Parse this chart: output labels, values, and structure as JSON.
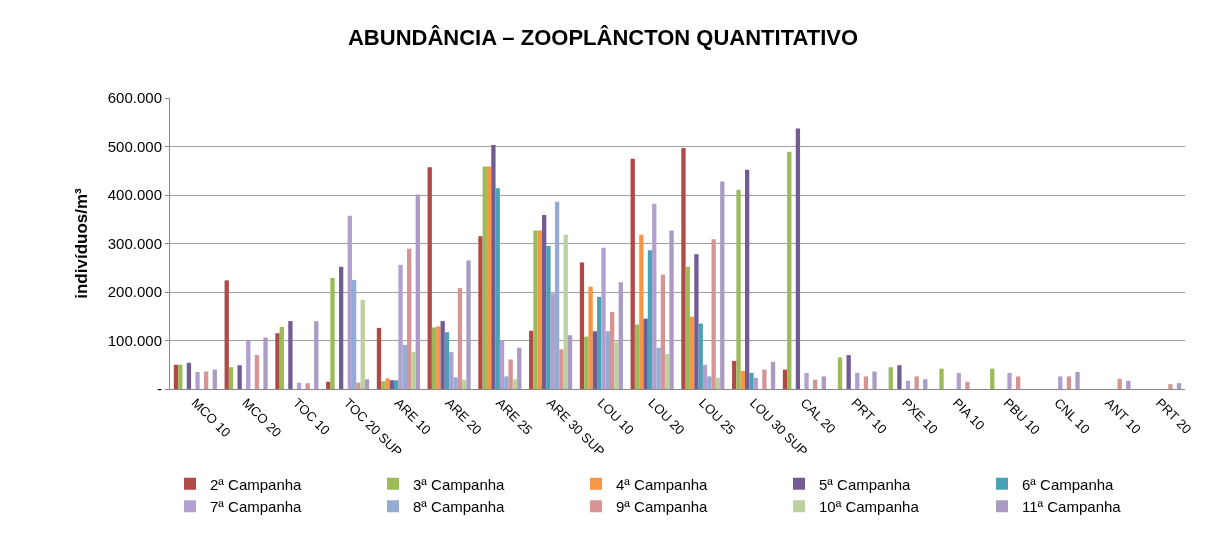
{
  "chart_data": {
    "type": "bar",
    "title": "ABUNDÂNCIA – ZOOPLÂNCTON QUANTITATIVO",
    "ylabel": "indivíduos/m³",
    "categories": [
      "MCO 10",
      "MCO 20",
      "TOC 10",
      "TOC 20 SUP",
      "ARE 10",
      "ARE 20",
      "ARE 25",
      "ARE 30 SUP",
      "LOU 10",
      "LOU 20",
      "LOU 25",
      "LOU 30 SUP",
      "CAL 20",
      "PRT 10",
      "PXE 10",
      "PIA 10",
      "PBU 10",
      "CNL 10",
      "ANT 10",
      "PRT 20"
    ],
    "series": [
      {
        "name": "2ª Campanha",
        "color": "#b04a47",
        "values": [
          50000,
          224000,
          115000,
          15000,
          126000,
          457000,
          315000,
          120000,
          261000,
          475000,
          497000,
          58000,
          40000,
          null,
          null,
          null,
          null,
          null,
          null,
          null
        ]
      },
      {
        "name": "3ª Campanha",
        "color": "#9bbb59",
        "values": [
          50000,
          45000,
          128000,
          229000,
          16000,
          127000,
          459000,
          327000,
          108000,
          133000,
          252000,
          411000,
          489000,
          65000,
          45000,
          42000,
          42000,
          null,
          null,
          null
        ]
      },
      {
        "name": "4ª Campanha",
        "color": "#f79646",
        "values": [
          null,
          null,
          null,
          null,
          22000,
          129000,
          459000,
          327000,
          211000,
          318000,
          149000,
          37000,
          null,
          null,
          null,
          null,
          null,
          null,
          null,
          null
        ]
      },
      {
        "name": "5ª Campanha",
        "color": "#725c96",
        "values": [
          54000,
          49000,
          140000,
          252000,
          18000,
          140000,
          503000,
          359000,
          119000,
          145000,
          278000,
          452000,
          537000,
          70000,
          49000,
          null,
          null,
          null,
          null,
          null
        ]
      },
      {
        "name": "6ª Campanha",
        "color": "#4aa0b5",
        "values": [
          null,
          null,
          null,
          null,
          18000,
          117000,
          414000,
          295000,
          190000,
          286000,
          135000,
          33000,
          null,
          null,
          null,
          null,
          null,
          null,
          null,
          null
        ]
      },
      {
        "name": "7ª Campanha",
        "color": "#b1a0cf",
        "values": [
          35000,
          100000,
          13000,
          357000,
          256000,
          76000,
          100000,
          197000,
          291000,
          382000,
          50000,
          23000,
          33000,
          33000,
          17000,
          33000,
          33000,
          26000,
          null,
          null
        ]
      },
      {
        "name": "8ª Campanha",
        "color": "#93abd5",
        "values": [
          null,
          null,
          null,
          225000,
          91000,
          24000,
          26000,
          386000,
          119000,
          85000,
          26000,
          null,
          null,
          null,
          null,
          null,
          null,
          null,
          null,
          null
        ]
      },
      {
        "name": "9ª Campanha",
        "color": "#d69594",
        "values": [
          36000,
          70000,
          12000,
          13000,
          289000,
          208000,
          61000,
          82000,
          159000,
          236000,
          309000,
          40000,
          19000,
          26000,
          26000,
          15000,
          26000,
          26000,
          21000,
          10000
        ]
      },
      {
        "name": "10ª Campanha",
        "color": "#bbd29e",
        "values": [
          null,
          null,
          null,
          184000,
          76000,
          19000,
          20000,
          318000,
          98000,
          72000,
          23000,
          null,
          null,
          null,
          null,
          null,
          null,
          null,
          null,
          null
        ]
      },
      {
        "name": "11ª Campanha",
        "color": "#a99bc4",
        "values": [
          40000,
          106000,
          140000,
          20000,
          401000,
          265000,
          85000,
          111000,
          220000,
          327000,
          428000,
          56000,
          26000,
          36000,
          20000,
          null,
          null,
          35000,
          17000,
          12000
        ]
      }
    ],
    "ylim": [
      0,
      600000
    ],
    "yticks": [
      {
        "value": 0,
        "label": "-"
      },
      {
        "value": 100000,
        "label": "100.000"
      },
      {
        "value": 200000,
        "label": "200.000"
      },
      {
        "value": 300000,
        "label": "300.000"
      },
      {
        "value": 400000,
        "label": "400.000"
      },
      {
        "value": 500000,
        "label": "500.000"
      },
      {
        "value": 600000,
        "label": "600.000"
      }
    ],
    "grid": "y",
    "legend": "bottom"
  }
}
